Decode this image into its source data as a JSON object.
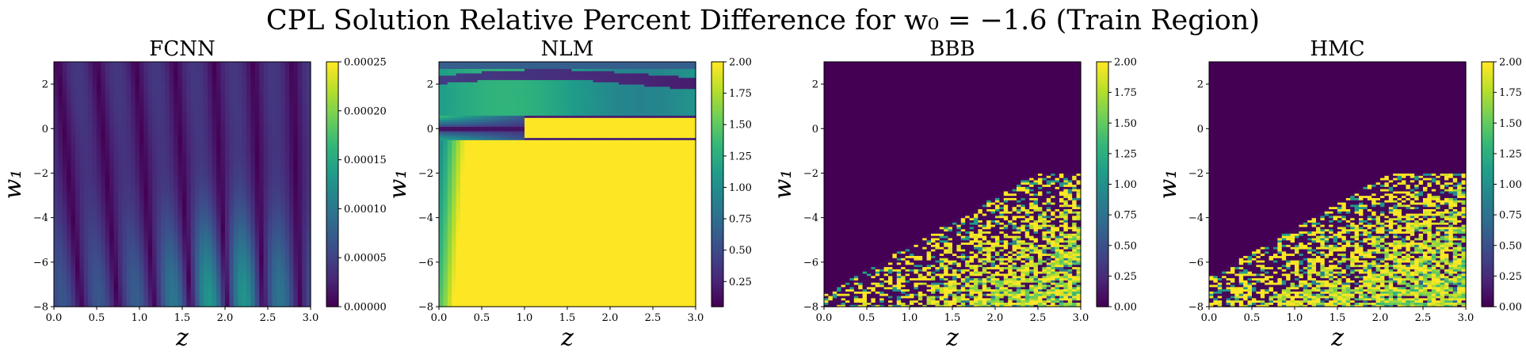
{
  "suptitle": "CPL Solution Relative Percent Difference for w₀ = −1.6 (Train Region)",
  "chart_data": [
    {
      "type": "heatmap",
      "title": "FCNN",
      "xlabel": "z",
      "ylabel": "w₁",
      "xlim": [
        0.0,
        3.0
      ],
      "ylim": [
        -8,
        3
      ],
      "xticks": [
        "0.0",
        "0.5",
        "1.0",
        "1.5",
        "2.0",
        "2.5",
        "3.0"
      ],
      "yticks": [
        "−8",
        "−6",
        "−4",
        "−2",
        "0",
        "2"
      ],
      "colorbar": {
        "min": 0.0,
        "max": 0.00025,
        "cmap": "viridis",
        "ticks": [
          "0.00000",
          "0.00005",
          "0.00010",
          "0.00015",
          "0.00020",
          "0.00025"
        ]
      },
      "pattern": "vertical oscillating bands, peak ~0.00025 near z≈2.0, w₁≈−8"
    },
    {
      "type": "heatmap",
      "title": "NLM",
      "xlabel": "z",
      "ylabel": "w₁",
      "xlim": [
        0.0,
        3.0
      ],
      "ylim": [
        -8,
        3
      ],
      "xticks": [
        "0.0",
        "0.5",
        "1.0",
        "1.5",
        "2.0",
        "2.5",
        "3.0"
      ],
      "yticks": [
        "−8",
        "−6",
        "−4",
        "−2",
        "0",
        "2"
      ],
      "colorbar": {
        "min": 0.05,
        "max": 2.0,
        "cmap": "viridis",
        "ticks": [
          "0.25",
          "0.50",
          "0.75",
          "1.00",
          "1.25",
          "1.50",
          "1.75",
          "2.00"
        ]
      },
      "pattern": "saturated (≥2.0) for w₁ below ≈−0.5 and for z>1 near w₁≈0; dark band along w₁≈0 and w₁≈2.3"
    },
    {
      "type": "heatmap",
      "title": "BBB",
      "xlabel": "z",
      "ylabel": "w₁",
      "xlim": [
        0.0,
        3.0
      ],
      "ylim": [
        -8,
        3
      ],
      "xticks": [
        "0.0",
        "0.5",
        "1.0",
        "1.5",
        "2.0",
        "2.5",
        "3.0"
      ],
      "yticks": [
        "−8",
        "−6",
        "−4",
        "−2",
        "0",
        "2"
      ],
      "colorbar": {
        "min": 0.0,
        "max": 2.0,
        "cmap": "viridis",
        "ticks": [
          "0.00",
          "0.25",
          "0.50",
          "0.75",
          "1.00",
          "1.25",
          "1.50",
          "1.75",
          "2.00"
        ]
      },
      "pattern": "near zero except noisy high values in lower-right (z>1.5, w₁<−3)"
    },
    {
      "type": "heatmap",
      "title": "HMC",
      "xlabel": "z",
      "ylabel": "w₁",
      "xlim": [
        0.0,
        3.0
      ],
      "ylim": [
        -8,
        3
      ],
      "xticks": [
        "0.0",
        "0.5",
        "1.0",
        "1.5",
        "2.0",
        "2.5",
        "3.0"
      ],
      "yticks": [
        "−8",
        "−6",
        "−4",
        "−2",
        "0",
        "2"
      ],
      "colorbar": {
        "min": 0.0,
        "max": 2.0,
        "cmap": "viridis",
        "ticks": [
          "0.00",
          "0.25",
          "0.50",
          "0.75",
          "1.00",
          "1.25",
          "1.50",
          "1.75",
          "2.00"
        ]
      },
      "pattern": "near zero except noisy high values in lower-right (z>1.4, w₁<−2.5)"
    }
  ]
}
